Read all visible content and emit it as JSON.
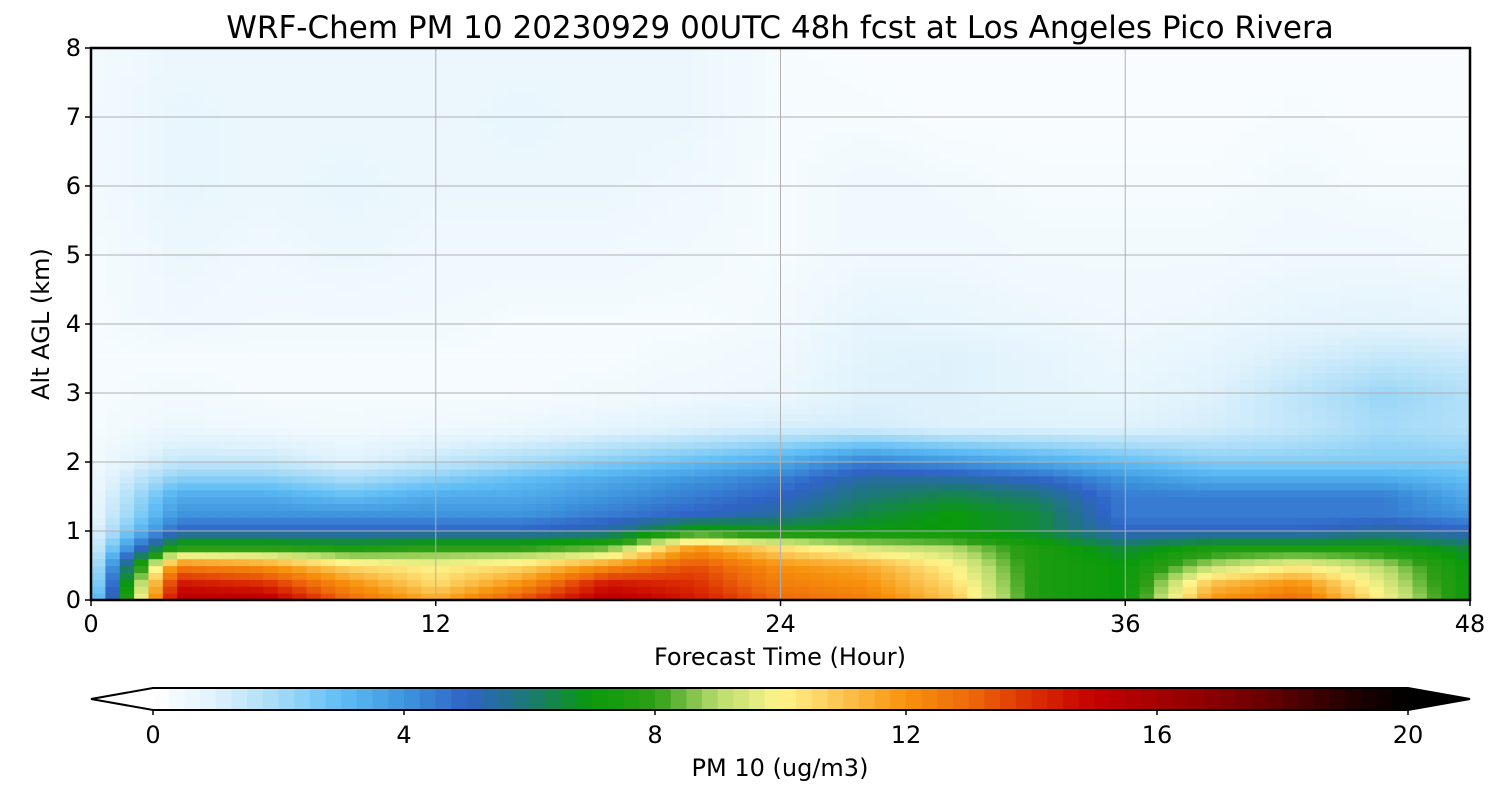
{
  "chart_data": {
    "type": "heatmap",
    "title": "WRF-Chem PM 10  20230929 00UTC 48h fcst at Los Angeles Pico Rivera",
    "xlabel": "Forecast Time (Hour)",
    "ylabel": "Alt AGL (km)",
    "xlim": [
      0,
      48
    ],
    "ylim": [
      0,
      8
    ],
    "x_ticks": [
      "0",
      "12",
      "24",
      "36",
      "48"
    ],
    "y_ticks": [
      "0",
      "1",
      "2",
      "3",
      "4",
      "5",
      "6",
      "7",
      "8"
    ],
    "grid": true,
    "x": [
      0,
      3,
      6,
      9,
      12,
      15,
      18,
      21,
      24,
      27,
      30,
      33,
      36,
      39,
      42,
      45,
      48
    ],
    "y": [
      0,
      0.25,
      0.5,
      0.75,
      1.0,
      1.25,
      1.5,
      1.75,
      2.0,
      2.5,
      3.0,
      3.5,
      4.0,
      5.0,
      6.0,
      7.0,
      8.0
    ],
    "z": [
      [
        2.0,
        15.5,
        15.5,
        13.0,
        11.5,
        13.5,
        15.5,
        14.5,
        13.0,
        12.5,
        11.0,
        7.5,
        7.0,
        12.0,
        13.0,
        10.0,
        7.0
      ],
      [
        1.5,
        14.5,
        14.0,
        12.0,
        10.5,
        12.0,
        14.5,
        14.0,
        12.5,
        12.0,
        10.5,
        7.5,
        7.0,
        11.0,
        12.0,
        9.5,
        7.0
      ],
      [
        1.2,
        12.5,
        12.0,
        10.5,
        10.0,
        10.5,
        12.0,
        13.5,
        12.0,
        11.5,
        10.0,
        7.5,
        7.0,
        9.0,
        10.0,
        9.0,
        7.0
      ],
      [
        1.0,
        8.0,
        8.0,
        7.5,
        8.0,
        8.0,
        8.5,
        12.0,
        10.5,
        9.5,
        9.0,
        7.5,
        6.5,
        7.5,
        7.5,
        7.5,
        6.5
      ],
      [
        0.8,
        5.0,
        5.0,
        5.0,
        5.0,
        5.0,
        5.5,
        7.5,
        7.0,
        7.0,
        7.0,
        6.5,
        5.0,
        5.0,
        5.0,
        5.5,
        5.0
      ],
      [
        0.6,
        4.0,
        4.0,
        4.0,
        4.0,
        4.0,
        4.5,
        5.0,
        5.5,
        6.5,
        7.0,
        6.5,
        4.5,
        4.5,
        4.5,
        4.5,
        4.0
      ],
      [
        0.5,
        3.5,
        3.5,
        3.0,
        3.5,
        3.5,
        4.0,
        4.5,
        5.0,
        6.0,
        6.5,
        6.0,
        4.5,
        4.5,
        4.5,
        4.5,
        3.5
      ],
      [
        0.5,
        2.5,
        2.5,
        2.0,
        2.5,
        3.0,
        3.5,
        4.0,
        4.5,
        5.5,
        5.5,
        5.0,
        4.0,
        3.5,
        3.5,
        3.5,
        3.0
      ],
      [
        0.4,
        1.5,
        1.5,
        1.0,
        1.5,
        2.0,
        2.5,
        3.0,
        3.5,
        4.5,
        4.0,
        3.5,
        3.0,
        2.5,
        2.5,
        2.5,
        2.5
      ],
      [
        0.3,
        0.6,
        0.5,
        0.4,
        0.5,
        0.6,
        0.8,
        1.0,
        1.2,
        1.2,
        1.0,
        1.0,
        1.0,
        1.2,
        1.5,
        2.0,
        1.8
      ],
      [
        0.3,
        0.4,
        0.3,
        0.3,
        0.3,
        0.3,
        0.4,
        0.5,
        0.6,
        1.0,
        1.0,
        0.8,
        0.7,
        1.0,
        1.6,
        2.2,
        1.8
      ],
      [
        0.3,
        0.3,
        0.3,
        0.3,
        0.3,
        0.3,
        0.3,
        0.4,
        0.5,
        0.9,
        1.0,
        0.8,
        0.6,
        0.8,
        1.2,
        1.5,
        1.4
      ],
      [
        0.3,
        0.5,
        0.4,
        0.4,
        0.4,
        0.3,
        0.3,
        0.3,
        0.4,
        0.8,
        0.7,
        0.6,
        0.5,
        0.6,
        0.8,
        0.9,
        0.8
      ],
      [
        0.3,
        0.6,
        0.5,
        0.6,
        0.5,
        0.5,
        0.5,
        0.4,
        0.3,
        0.5,
        0.5,
        0.4,
        0.4,
        0.4,
        0.5,
        0.5,
        0.4
      ],
      [
        0.4,
        0.7,
        0.6,
        0.7,
        0.6,
        0.6,
        0.6,
        0.5,
        0.3,
        0.5,
        0.4,
        0.3,
        0.3,
        0.3,
        0.4,
        0.3,
        0.3
      ],
      [
        0.4,
        0.7,
        0.6,
        0.6,
        0.6,
        0.7,
        0.6,
        0.6,
        0.3,
        0.3,
        0.2,
        0.2,
        0.2,
        0.2,
        0.3,
        0.2,
        0.2
      ],
      [
        0.4,
        0.6,
        0.6,
        0.6,
        0.6,
        0.6,
        0.6,
        0.6,
        0.3,
        0.2,
        0.2,
        0.2,
        0.2,
        0.2,
        0.2,
        0.2,
        0.2
      ]
    ],
    "colorbar": {
      "label": "PM 10  (ug/m3)",
      "min": 0,
      "max": 20,
      "ticks": [
        "0",
        "4",
        "8",
        "12",
        "16",
        "20"
      ],
      "extend": "both",
      "color_stops": [
        [
          0,
          "#ffffff"
        ],
        [
          1,
          "#dff2fc"
        ],
        [
          2,
          "#a6dbf7"
        ],
        [
          3,
          "#5fbdf5"
        ],
        [
          4,
          "#3e95dd"
        ],
        [
          5,
          "#2f63c6"
        ],
        [
          6,
          "#1c7a72"
        ],
        [
          7,
          "#0a9a0a"
        ],
        [
          8,
          "#2e9e17"
        ],
        [
          9,
          "#b9dc6e"
        ],
        [
          10,
          "#fff58c"
        ],
        [
          11,
          "#fbc34e"
        ],
        [
          12,
          "#f7920c"
        ],
        [
          13,
          "#ee6a0a"
        ],
        [
          14,
          "#dc2e02"
        ],
        [
          15,
          "#c40000"
        ],
        [
          16,
          "#a50000"
        ],
        [
          17,
          "#860000"
        ],
        [
          18,
          "#5a0000"
        ],
        [
          19,
          "#250000"
        ],
        [
          20,
          "#000000"
        ]
      ]
    }
  }
}
